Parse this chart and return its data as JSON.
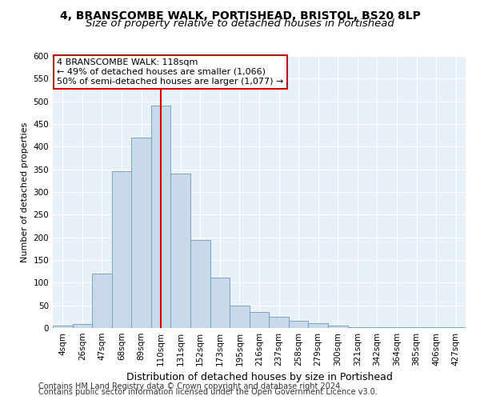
{
  "title1": "4, BRANSCOMBE WALK, PORTISHEAD, BRISTOL, BS20 8LP",
  "title2": "Size of property relative to detached houses in Portishead",
  "xlabel": "Distribution of detached houses by size in Portishead",
  "ylabel": "Number of detached properties",
  "bar_color": "#c9d9ea",
  "bar_edge_color": "#6a9abf",
  "categories": [
    "4sqm",
    "26sqm",
    "47sqm",
    "68sqm",
    "89sqm",
    "110sqm",
    "131sqm",
    "152sqm",
    "173sqm",
    "195sqm",
    "216sqm",
    "237sqm",
    "258sqm",
    "279sqm",
    "300sqm",
    "321sqm",
    "342sqm",
    "364sqm",
    "385sqm",
    "406sqm",
    "427sqm"
  ],
  "values": [
    5,
    8,
    120,
    345,
    420,
    490,
    340,
    195,
    112,
    50,
    35,
    25,
    16,
    10,
    5,
    2,
    2,
    1,
    1,
    1,
    2
  ],
  "ylim": [
    0,
    600
  ],
  "yticks": [
    0,
    50,
    100,
    150,
    200,
    250,
    300,
    350,
    400,
    450,
    500,
    550,
    600
  ],
  "vline_x": 5,
  "vline_color": "#cc0000",
  "annotation_text": "4 BRANSCOMBE WALK: 118sqm\n← 49% of detached houses are smaller (1,066)\n50% of semi-detached houses are larger (1,077) →",
  "annotation_box_color": "#ffffff",
  "annotation_box_edge": "#cc0000",
  "footer1": "Contains HM Land Registry data © Crown copyright and database right 2024.",
  "footer2": "Contains public sector information licensed under the Open Government Licence v3.0.",
  "background_color": "#e8f0f8",
  "grid_color": "#ffffff",
  "fig_background": "#ffffff",
  "title1_fontsize": 10,
  "title2_fontsize": 9.5,
  "xlabel_fontsize": 9,
  "ylabel_fontsize": 8,
  "tick_fontsize": 7.5,
  "annotation_fontsize": 8,
  "footer_fontsize": 7
}
